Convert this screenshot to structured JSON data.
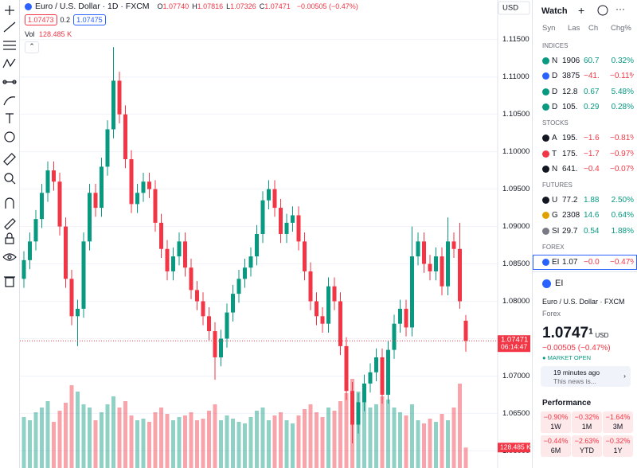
{
  "header": {
    "symbol": "Euro / U.S. Dollar · 1D · FXCM",
    "ohlc": [
      {
        "label": "O",
        "value": "1.07740"
      },
      {
        "label": "H",
        "value": "1.07816"
      },
      {
        "label": "L",
        "value": "1.07326"
      },
      {
        "label": "C",
        "value": "1.07471"
      }
    ],
    "change": "−0.00505 (−0.47%)",
    "sell": "1.07473",
    "spread": "0.2",
    "buy": "1.07475",
    "volume_label": "Vol",
    "volume_value": "128.485 K",
    "currency": "USD",
    "axis_price": "1.07471",
    "countdown": "06:14:47",
    "axis_volume": "128.485 K"
  },
  "chart_data": {
    "type": "candlestick",
    "ylim": [
      1.0577,
      1.1171
    ],
    "yticks": [
      {
        "value": 1.115,
        "label": "1.11500"
      },
      {
        "value": 1.11,
        "label": "1.11000"
      },
      {
        "value": 1.105,
        "label": "1.10500"
      },
      {
        "value": 1.1,
        "label": "1.10000"
      },
      {
        "value": 1.095,
        "label": "1.09500"
      },
      {
        "value": 1.09,
        "label": "1.09000"
      },
      {
        "value": 1.085,
        "label": "1.08500"
      },
      {
        "value": 1.08,
        "label": "1.08000"
      },
      {
        "value": 1.075,
        "label": "1.07500"
      },
      {
        "value": 1.07,
        "label": "1.07000"
      },
      {
        "value": 1.065,
        "label": "1.06500"
      },
      {
        "value": 1.06,
        "label": "1.06000"
      }
    ],
    "grid": true,
    "up_color": "#089981",
    "down_color": "#f23645",
    "open": [
      1.083,
      1.0855,
      1.088,
      1.091,
      1.0945,
      1.0975,
      1.096,
      1.09,
      1.083,
      1.078,
      1.079,
      1.088,
      1.0945,
      1.0925,
      1.098,
      1.103,
      1.1095,
      1.105,
      1.099,
      1.093,
      1.0945,
      1.096,
      1.095,
      1.0905,
      1.087,
      1.084,
      1.086,
      1.088,
      1.0845,
      1.0815,
      1.08,
      1.078,
      1.076,
      1.0725,
      1.075,
      1.0785,
      1.081,
      1.083,
      1.0845,
      1.086,
      1.089,
      1.0935,
      1.095,
      1.0925,
      1.089,
      1.0905,
      1.0915,
      1.088,
      1.084,
      1.08,
      1.078,
      1.077,
      1.082,
      1.08,
      1.074,
      1.068,
      1.0635,
      1.0665,
      1.069,
      1.0705,
      1.0725,
      1.0675,
      1.0735,
      1.077,
      1.079,
      1.0765,
      1.086,
      1.088,
      1.085,
      1.084,
      1.086,
      1.082,
      1.088,
      1.087,
      1.0774
    ],
    "high": [
      1.0867,
      1.0892,
      1.0922,
      1.0957,
      1.0987,
      1.0987,
      1.0972,
      1.0912,
      1.0842,
      1.0802,
      1.0892,
      1.0957,
      1.0957,
      1.0992,
      1.1042,
      1.114,
      1.1107,
      1.1062,
      1.1002,
      1.0957,
      1.0972,
      1.0972,
      1.0962,
      1.0917,
      1.0882,
      1.0872,
      1.0892,
      1.0892,
      1.0857,
      1.0827,
      1.0812,
      1.0792,
      1.0772,
      1.0762,
      1.0797,
      1.0822,
      1.0842,
      1.0857,
      1.0872,
      1.0902,
      1.0947,
      1.0962,
      1.0962,
      1.0937,
      1.0917,
      1.0927,
      1.0927,
      1.0892,
      1.0852,
      1.0812,
      1.0792,
      1.0832,
      1.0832,
      1.0812,
      1.0752,
      1.0692,
      1.0677,
      1.0702,
      1.0717,
      1.0737,
      1.0737,
      1.0747,
      1.0782,
      1.0802,
      1.0802,
      1.09,
      1.0892,
      1.0892,
      1.0862,
      1.0872,
      1.0872,
      1.0912,
      1.0892,
      1.0905,
      1.07816
    ],
    "low": [
      1.0818,
      1.0843,
      1.0868,
      1.0898,
      1.0933,
      1.0948,
      1.0888,
      1.0818,
      1.0768,
      1.074,
      1.0778,
      1.0868,
      1.0913,
      1.0913,
      1.0968,
      1.1018,
      1.1038,
      1.0978,
      1.0918,
      1.0918,
      1.0933,
      1.0938,
      1.0893,
      1.0858,
      1.0828,
      1.0828,
      1.0848,
      1.0833,
      1.0803,
      1.0788,
      1.0768,
      1.0748,
      1.0695,
      1.0713,
      1.0738,
      1.0773,
      1.0798,
      1.0818,
      1.0833,
      1.0848,
      1.0878,
      1.0923,
      1.0913,
      1.0878,
      1.0878,
      1.0893,
      1.0868,
      1.0828,
      1.0788,
      1.0768,
      1.0758,
      1.0758,
      1.0788,
      1.0728,
      1.0668,
      1.061,
      1.0623,
      1.0653,
      1.0678,
      1.0693,
      1.0663,
      1.0663,
      1.0723,
      1.0758,
      1.0753,
      1.0753,
      1.0848,
      1.0838,
      1.0828,
      1.0828,
      1.0808,
      1.0808,
      1.0858,
      1.079,
      1.07326
    ],
    "close": [
      1.0855,
      1.088,
      1.091,
      1.0945,
      1.0975,
      1.096,
      1.09,
      1.083,
      1.078,
      1.079,
      1.088,
      1.0945,
      1.0925,
      1.098,
      1.103,
      1.1095,
      1.105,
      1.099,
      1.093,
      1.0945,
      1.096,
      1.095,
      1.0905,
      1.087,
      1.084,
      1.086,
      1.088,
      1.0845,
      1.0815,
      1.08,
      1.078,
      1.076,
      1.0725,
      1.075,
      1.0785,
      1.081,
      1.083,
      1.0845,
      1.086,
      1.089,
      1.0935,
      1.095,
      1.0925,
      1.089,
      1.0905,
      1.0915,
      1.088,
      1.084,
      1.08,
      1.078,
      1.077,
      1.082,
      1.08,
      1.074,
      1.068,
      1.0635,
      1.0665,
      1.069,
      1.0705,
      1.0725,
      1.0675,
      1.0735,
      1.077,
      1.079,
      1.0765,
      1.086,
      1.088,
      1.085,
      1.084,
      1.086,
      1.082,
      1.088,
      1.087,
      1.08,
      1.07471
    ],
    "volume": [
      320,
      300,
      350,
      380,
      420,
      290,
      360,
      410,
      520,
      480,
      400,
      380,
      300,
      350,
      400,
      450,
      380,
      420,
      330,
      300,
      310,
      290,
      350,
      380,
      340,
      300,
      320,
      330,
      350,
      300,
      310,
      360,
      400,
      300,
      330,
      310,
      290,
      280,
      320,
      360,
      380,
      300,
      330,
      350,
      300,
      280,
      330,
      370,
      400,
      350,
      320,
      380,
      360,
      420,
      470,
      560,
      480,
      420,
      380,
      400,
      450,
      430,
      380,
      350,
      330,
      400,
      300,
      280,
      310,
      290,
      340,
      300,
      380,
      530,
      128.485
    ],
    "volume_lim": [
      0,
      700
    ]
  },
  "watchlist": {
    "title": "Watch",
    "columns": [
      "Syn",
      "Las",
      "Ch",
      "Chg%"
    ],
    "sections": [
      {
        "name": "INDICES",
        "rows": [
          [
            "N",
            "1906",
            "60.7",
            "0.32%"
          ],
          [
            "D",
            "3875",
            "−41.",
            "−0.11%"
          ],
          [
            "D",
            "12.8",
            "0.67",
            "5.48%"
          ],
          [
            "D",
            "105.",
            "0.29",
            "0.28%"
          ]
        ]
      },
      {
        "name": "STOCKS",
        "rows": [
          [
            "A",
            "195.",
            "−1.6",
            "−0.81%"
          ],
          [
            "T",
            "175.",
            "−1.7",
            "−0.97%"
          ],
          [
            "N",
            "641.",
            "−0.4",
            "−0.07%"
          ]
        ]
      },
      {
        "name": "FUTURES",
        "rows": [
          [
            "U",
            "77.2",
            "1.88",
            "2.50%"
          ],
          [
            "G",
            "2308",
            "14.6",
            "0.64%"
          ],
          [
            "SI",
            "29.7",
            "0.54",
            "1.88%"
          ]
        ]
      },
      {
        "name": "FOREX",
        "rows": [
          [
            "EI",
            "1.07",
            "−0.0",
            "−0.47%"
          ]
        ]
      }
    ]
  },
  "details": {
    "symbol": "EI",
    "name": "Euro / U.S. Dollar",
    "exchange": "FXCM",
    "type": "Forex",
    "price": "1.0747",
    "price_sup": "1",
    "currency": "USD",
    "change": "−0.00505 (−0.47%)",
    "status": "MARKET OPEN",
    "news_time": "19 minutes ago",
    "news_text": "This news is..."
  },
  "performance": {
    "title": "Performance",
    "items": [
      {
        "value": "−0.90%",
        "period": "1W"
      },
      {
        "value": "−0.32%",
        "period": "1M"
      },
      {
        "value": "−1.64%",
        "period": "3M"
      },
      {
        "value": "−0.44%",
        "period": "6M"
      },
      {
        "value": "−2.63%",
        "period": "YTD"
      },
      {
        "value": "−0.32%",
        "period": "1Y"
      }
    ]
  }
}
